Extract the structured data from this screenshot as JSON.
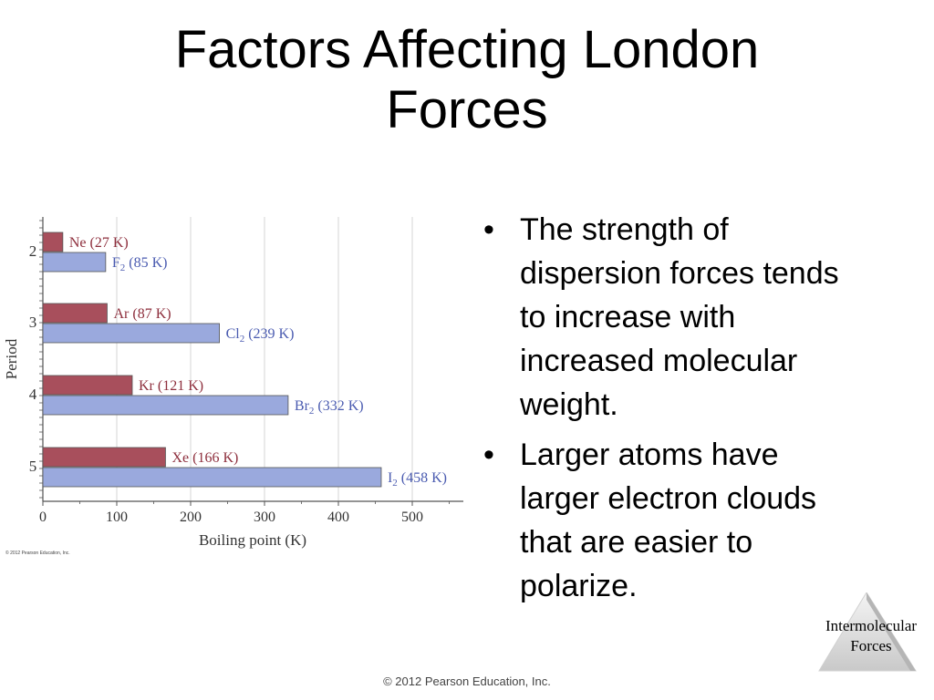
{
  "slide": {
    "title_line1": "Factors Affecting London",
    "title_line2": "Forces",
    "bullets": [
      "The strength of dispersion forces tends to increase with increased molecular weight.",
      "Larger atoms have larger electron clouds that are easier to polarize."
    ],
    "bullet_glyph": "•",
    "corner_label_line1": "Intermolecular",
    "corner_label_line2": "Forces",
    "footer": "© 2012 Pearson Education, Inc.",
    "chart_copyright": "© 2012 Pearson Education, Inc."
  },
  "colors": {
    "noble_gas_bar": "#a84f5c",
    "halogen_bar": "#9aa9dd",
    "noble_gas_label": "#8e2f3d",
    "halogen_label": "#4a5bb0",
    "grid": "#d6d6d6"
  },
  "chart_data": {
    "type": "bar",
    "orientation": "horizontal",
    "categories": [
      "2",
      "3",
      "4",
      "5"
    ],
    "ylabel": "Period",
    "xlabel": "Boiling point (K)",
    "xlim": [
      0,
      560
    ],
    "xticks": [
      0,
      100,
      200,
      300,
      400,
      500
    ],
    "grid": true,
    "series": [
      {
        "values": [
          27,
          87,
          121,
          166
        ],
        "labels": [
          {
            "name": "Ne",
            "sub": "",
            "value": "(27 K)"
          },
          {
            "name": "Ar",
            "sub": "",
            "value": "(87 K)"
          },
          {
            "name": "Kr",
            "sub": "",
            "value": "(121 K)"
          },
          {
            "name": "Xe",
            "sub": "",
            "value": "(166 K)"
          }
        ]
      },
      {
        "values": [
          85,
          239,
          332,
          458
        ],
        "labels": [
          {
            "name": "F",
            "sub": "2",
            "value": "(85 K)"
          },
          {
            "name": "Cl",
            "sub": "2",
            "value": "(239 K)"
          },
          {
            "name": "Br",
            "sub": "2",
            "value": "(332 K)"
          },
          {
            "name": "I",
            "sub": "2",
            "value": "(458 K)"
          }
        ]
      }
    ]
  }
}
